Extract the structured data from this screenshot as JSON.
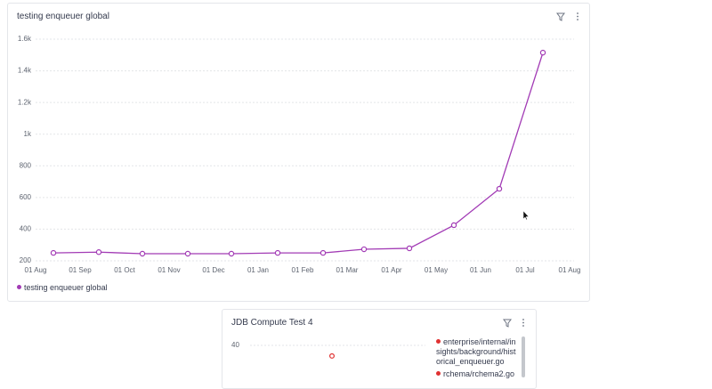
{
  "chart_data": [
    {
      "type": "line",
      "title": "testing enqueuer global",
      "x": [
        0.4,
        1.42,
        2.4,
        3.42,
        4.4,
        5.44,
        6.46,
        7.38,
        8.4,
        9.4,
        10.42,
        11.4
      ],
      "xlim": [
        -0.4,
        12.1
      ],
      "xticks": [
        {
          "value": 0,
          "label": "01 Aug"
        },
        {
          "value": 1,
          "label": "01 Sep"
        },
        {
          "value": 2,
          "label": "01 Oct"
        },
        {
          "value": 3,
          "label": "01 Nov"
        },
        {
          "value": 4,
          "label": "01 Dec"
        },
        {
          "value": 5,
          "label": "01 Jan"
        },
        {
          "value": 6,
          "label": "01 Feb"
        },
        {
          "value": 7,
          "label": "01 Mar"
        },
        {
          "value": 8,
          "label": "01 Apr"
        },
        {
          "value": 9,
          "label": "01 May"
        },
        {
          "value": 10,
          "label": "01 Jun"
        },
        {
          "value": 11,
          "label": "01 Jul"
        },
        {
          "value": 12,
          "label": "01 Aug"
        }
      ],
      "ylim": [
        200,
        1600
      ],
      "yticks": [
        200,
        400,
        600,
        800,
        {
          "value": 1000,
          "label": "1k"
        },
        {
          "value": 1200,
          "label": "1.2k"
        },
        {
          "value": 1400,
          "label": "1.4k"
        },
        {
          "value": 1600,
          "label": "1.6k"
        }
      ],
      "grid": true,
      "series": [
        {
          "name": "testing enqueuer global",
          "color": "#a23bb5",
          "values": [
            250,
            255,
            245,
            245,
            245,
            250,
            250,
            273,
            279,
            425,
            655,
            1515
          ]
        }
      ]
    },
    {
      "type": "line",
      "title": "JDB Compute Test 4",
      "ylim": [
        35,
        41
      ],
      "yticks": [
        40
      ],
      "grid": true,
      "series": [
        {
          "name": "enterprise/internal/insights/background/historical_enqueuer.go",
          "color": "#e03131",
          "values": [
            38.3
          ]
        },
        {
          "name": "rchema/rchema2.go",
          "color": "#e03131"
        }
      ]
    }
  ]
}
